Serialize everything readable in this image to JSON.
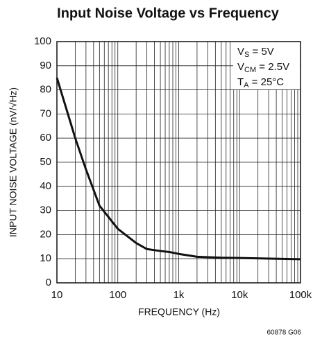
{
  "chart_data": {
    "type": "line",
    "title": "Input Noise Voltage vs Frequency",
    "x_label": "FREQUENCY (Hz)",
    "y_label": "INPUT NOISE VOLTAGE (nV/√Hz)",
    "footnote": "60878 G06",
    "annotation": [
      {
        "main": "V",
        "sub": "S",
        "rest": " = 5V"
      },
      {
        "main": "V",
        "sub": "CM",
        "rest": " = 2.5V"
      },
      {
        "main": "T",
        "sub": "A",
        "rest": " = 25°C"
      }
    ],
    "x_log": true,
    "grid": true,
    "xlim": [
      10,
      100000
    ],
    "ylim": [
      0,
      100
    ],
    "xticks": [
      10,
      100,
      {
        "value": 1000,
        "label": "1k"
      },
      {
        "value": 10000,
        "label": "10k"
      },
      {
        "value": 100000,
        "label": "100k"
      }
    ],
    "yticks": [
      0,
      10,
      20,
      30,
      40,
      50,
      60,
      70,
      80,
      90,
      100
    ],
    "series": [
      {
        "color": "#111111",
        "x": [
          10,
          20,
          30,
          50,
          100,
          200,
          300,
          500,
          700,
          1000,
          2000,
          5000,
          10000,
          100000
        ],
        "values": [
          85,
          60,
          47,
          32,
          22.4,
          16.5,
          14,
          13.2,
          12.8,
          12,
          10.8,
          10.4,
          10.3,
          9.8
        ]
      }
    ]
  }
}
